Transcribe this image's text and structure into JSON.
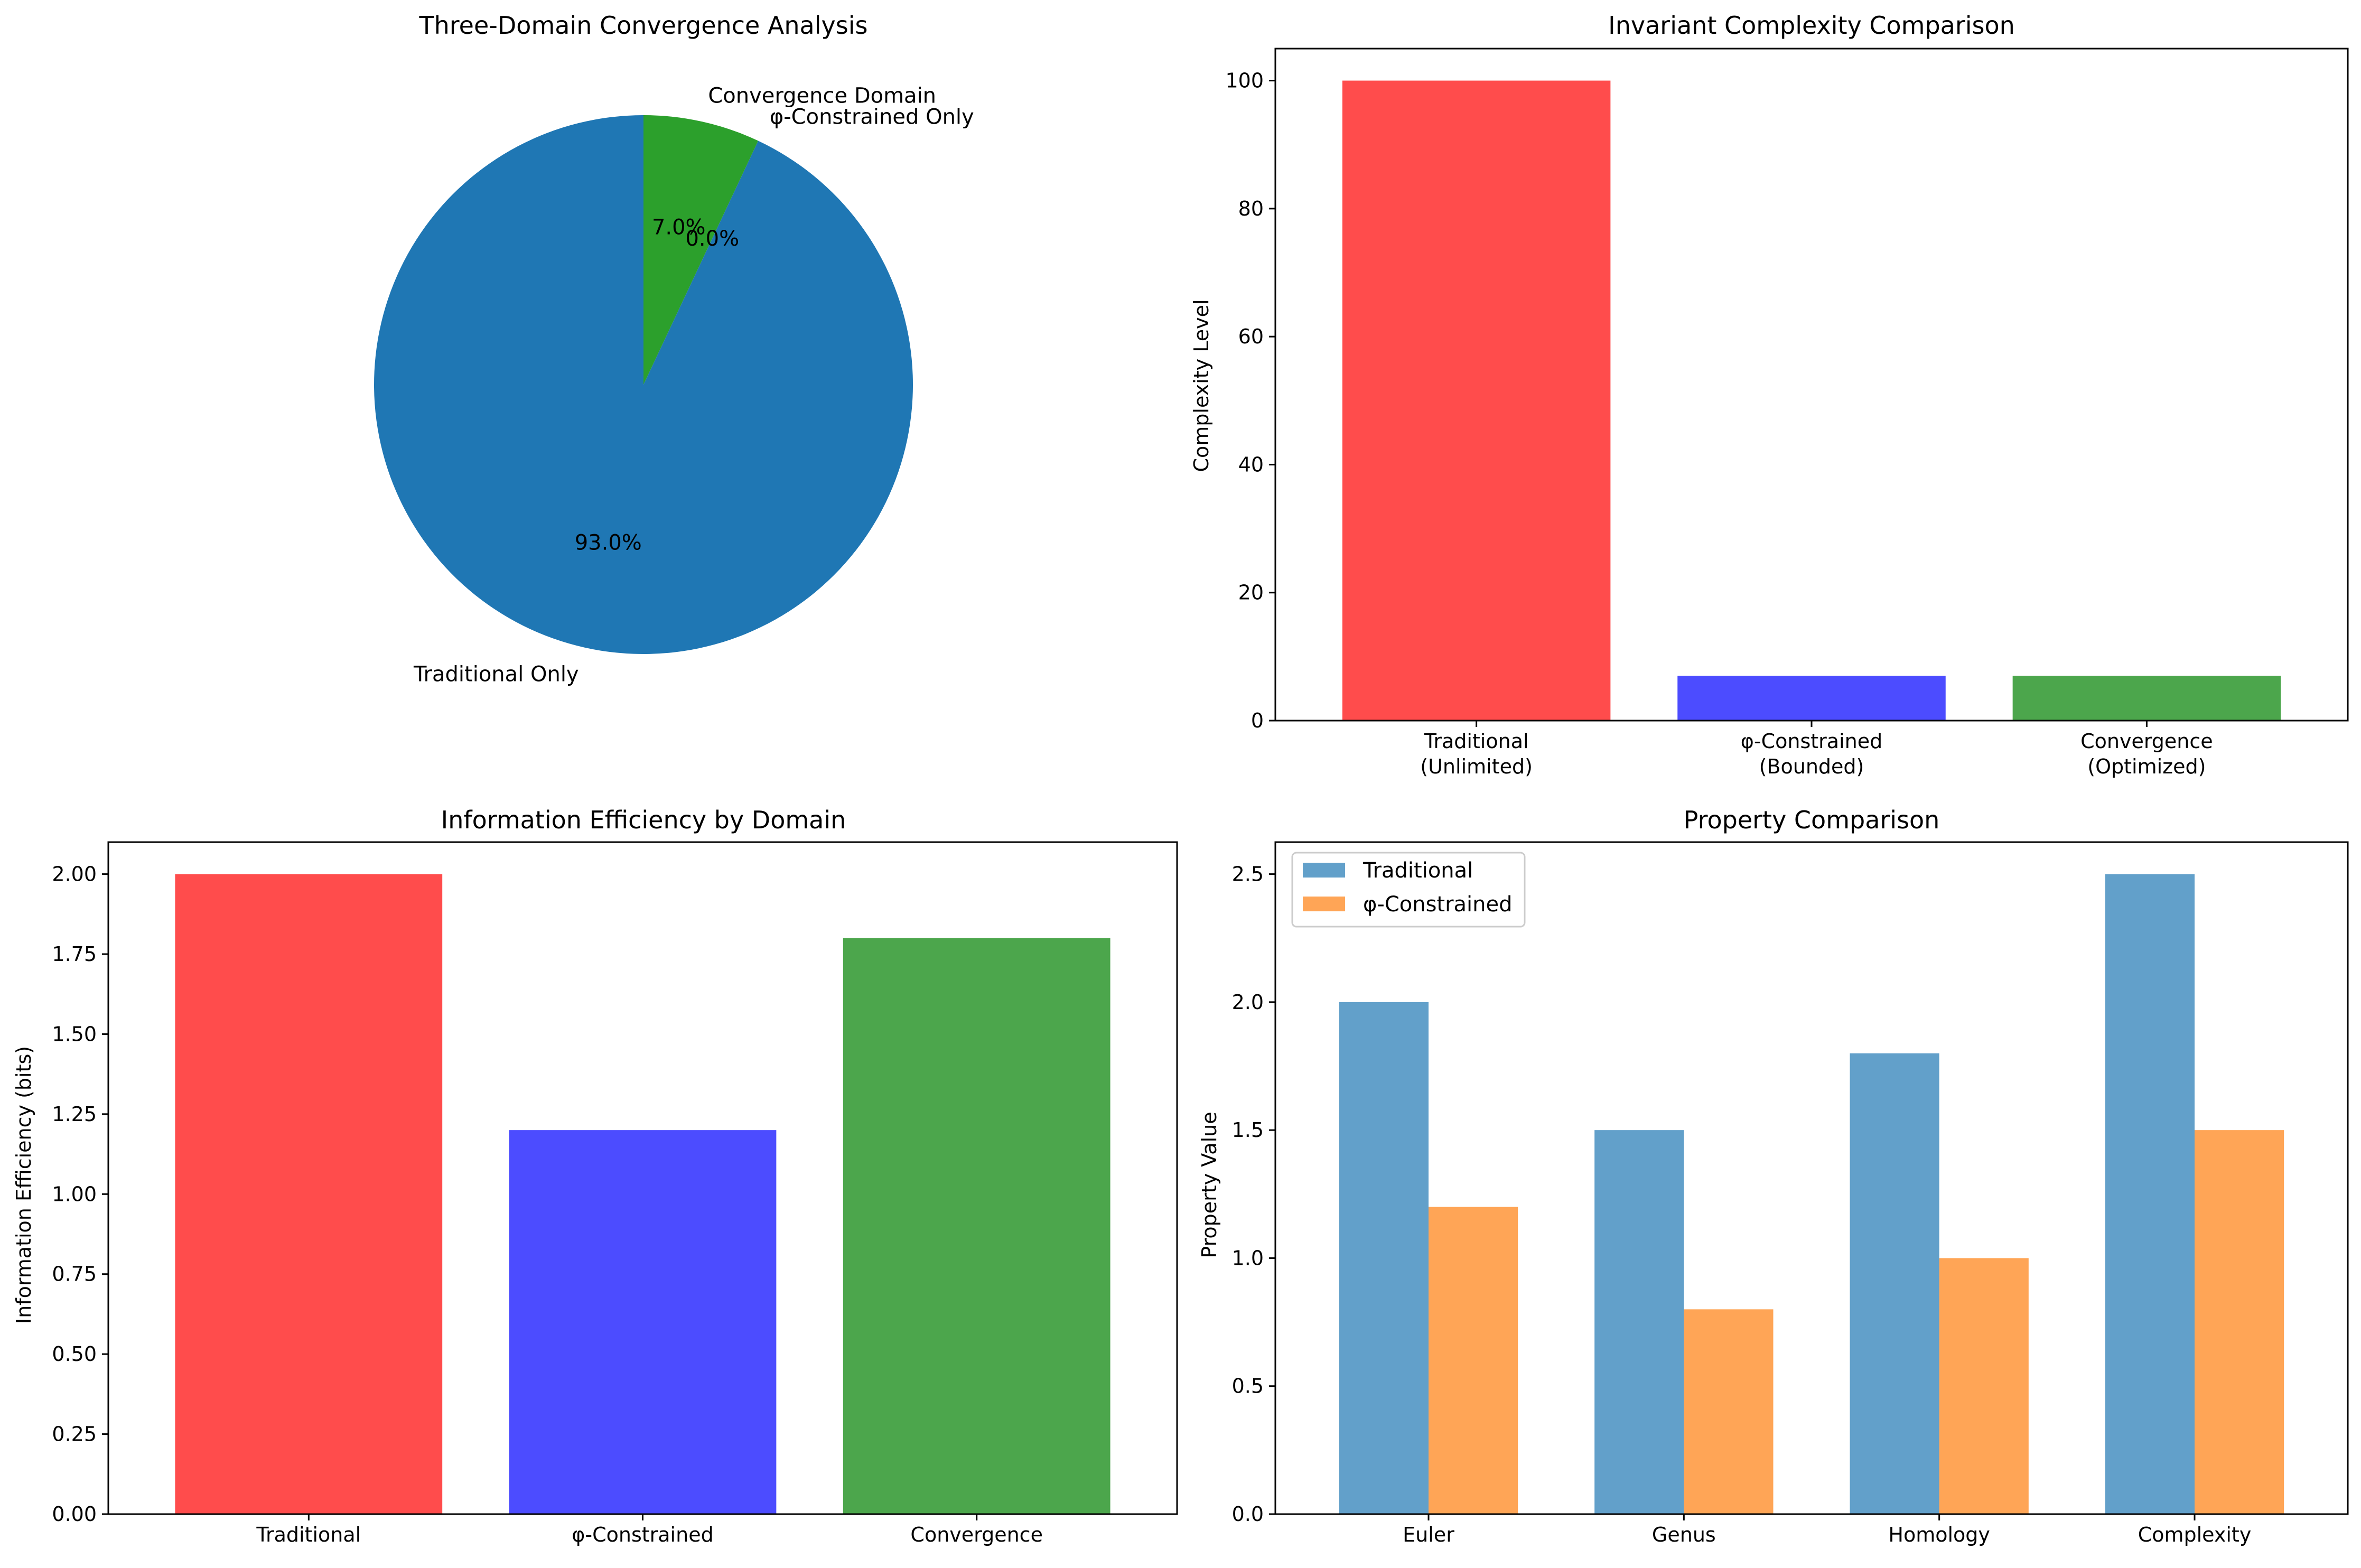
{
  "chart_data": [
    {
      "type": "pie",
      "title": "Three-Domain Convergence Analysis",
      "start_angle_deg": 90,
      "direction": "counterclockwise",
      "slices": [
        {
          "label": "Traditional Only",
          "value": 93.0,
          "pct_label": "93.0%",
          "color": "#1f77b4"
        },
        {
          "label": "φ-Constrained Only",
          "value": 0.0,
          "pct_label": "0.0%",
          "color": "#ff7f0e"
        },
        {
          "label": "Convergence Domain",
          "value": 7.0,
          "pct_label": "7.0%",
          "color": "#2ca02c"
        }
      ]
    },
    {
      "type": "bar",
      "title": "Invariant Complexity Comparison",
      "categories": [
        "Traditional\n(Unlimited)",
        "φ-Constrained\n(Bounded)",
        "Convergence\n(Optimized)"
      ],
      "values": [
        100,
        7,
        7
      ],
      "colors": [
        "#ff0000",
        "#0000ff",
        "#008000"
      ],
      "alpha": 0.7,
      "xlabel": "",
      "ylabel": "Complexity Level",
      "ylim": [
        0,
        105
      ],
      "yticks": [
        0,
        20,
        40,
        60,
        80,
        100
      ],
      "ytick_labels": [
        "0",
        "20",
        "40",
        "60",
        "80",
        "100"
      ]
    },
    {
      "type": "bar",
      "title": "Information Efficiency by Domain",
      "categories": [
        "Traditional",
        "φ-Constrained",
        "Convergence"
      ],
      "values": [
        2.0,
        1.2,
        1.8
      ],
      "colors": [
        "#ff0000",
        "#0000ff",
        "#008000"
      ],
      "alpha": 0.7,
      "xlabel": "",
      "ylabel": "Information Efficiency (bits)",
      "ylim": [
        0,
        2.1
      ],
      "yticks": [
        0,
        0.25,
        0.5,
        0.75,
        1.0,
        1.25,
        1.5,
        1.75,
        2.0
      ],
      "ytick_labels": [
        "0.00",
        "0.25",
        "0.50",
        "0.75",
        "1.00",
        "1.25",
        "1.50",
        "1.75",
        "2.00"
      ]
    },
    {
      "type": "bar",
      "title": "Property Comparison",
      "categories": [
        "Euler",
        "Genus",
        "Homology",
        "Complexity"
      ],
      "series": [
        {
          "name": "Traditional",
          "values": [
            2.0,
            1.5,
            1.8,
            2.5
          ],
          "color": "#1f77b4"
        },
        {
          "name": "φ-Constrained",
          "values": [
            1.2,
            0.8,
            1.0,
            1.5
          ],
          "color": "#ff7f0e"
        }
      ],
      "alpha": 0.7,
      "xlabel": "",
      "ylabel": "Property Value",
      "ylim": [
        0,
        2.625
      ],
      "yticks": [
        0,
        0.5,
        1.0,
        1.5,
        2.0,
        2.5
      ],
      "ytick_labels": [
        "0.0",
        "0.5",
        "1.0",
        "1.5",
        "2.0",
        "2.5"
      ],
      "legend": "top-left"
    }
  ]
}
